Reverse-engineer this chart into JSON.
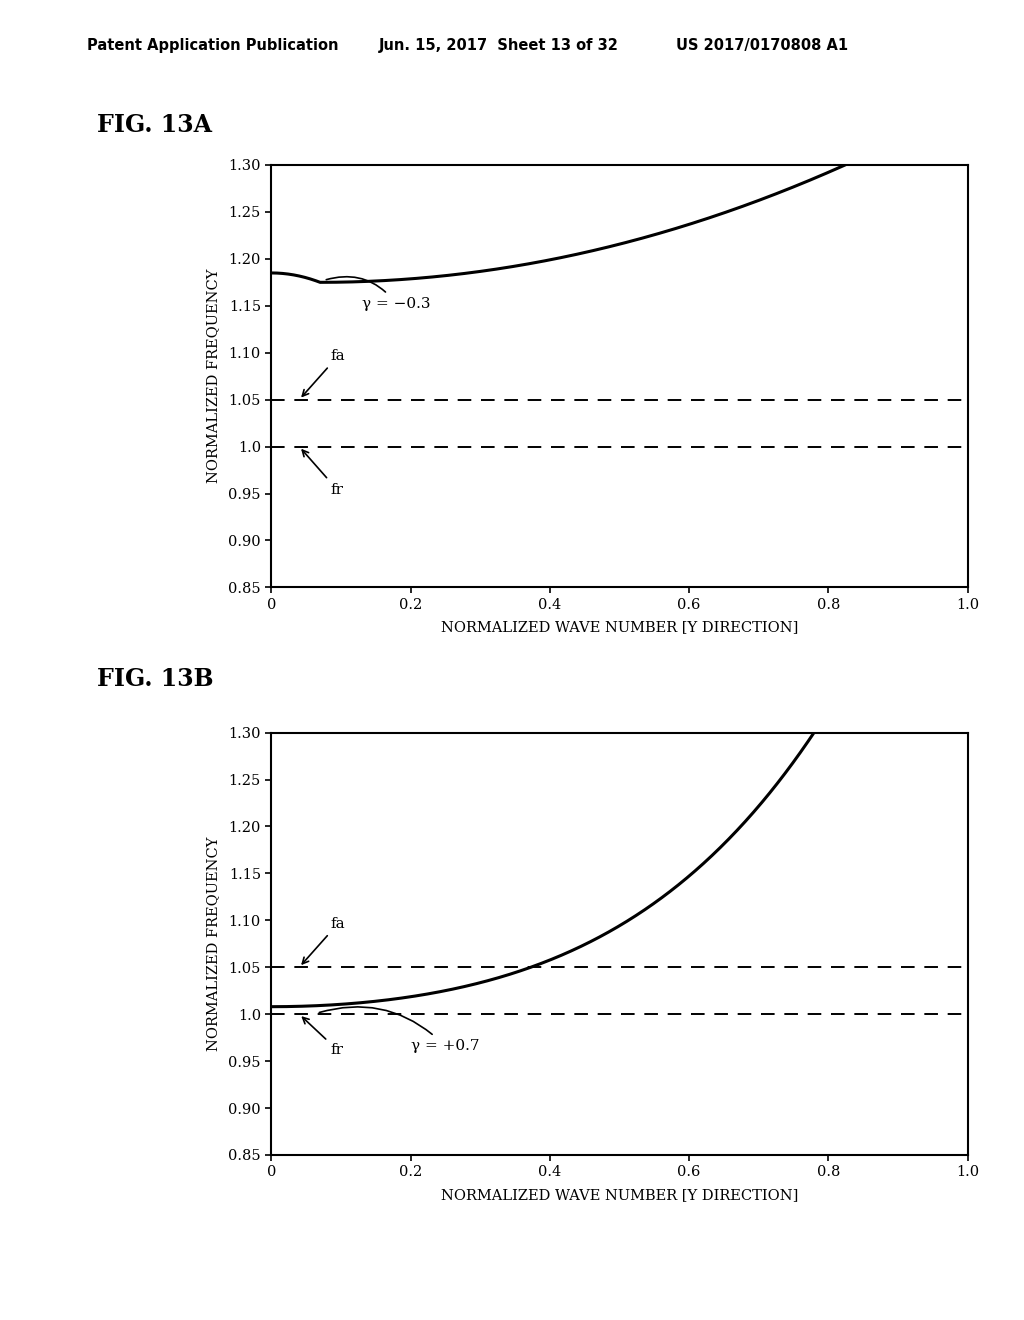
{
  "header_left": "Patent Application Publication",
  "header_mid": "Jun. 15, 2017  Sheet 13 of 32",
  "header_right": "US 2017/0170808 A1",
  "fig_label_A": "FIG. 13A",
  "fig_label_B": "FIG. 13B",
  "xlabel": "NORMALIZED WAVE NUMBER [Y DIRECTION]",
  "ylabel": "NORMALIZED FREQUENCY",
  "xlim": [
    0.0,
    1.0
  ],
  "ylim": [
    0.85,
    1.3
  ],
  "yticks": [
    0.85,
    0.9,
    0.95,
    1.0,
    1.05,
    1.1,
    1.15,
    1.2,
    1.25,
    1.3
  ],
  "xticks": [
    0.0,
    0.2,
    0.4,
    0.6,
    0.8,
    1.0
  ],
  "xtick_labels": [
    "0",
    "0.2",
    "0.4",
    "0.6",
    "0.8",
    "1.0"
  ],
  "ytick_labels": [
    "0.85",
    "0.90",
    "0.95",
    "1.0",
    "1.05",
    "1.10",
    "1.15",
    "1.20",
    "1.25",
    "1.30"
  ],
  "fa_line": 1.05,
  "fr_line": 1.0,
  "gamma_A": "γ = −0.3",
  "gamma_B": "γ = +0.7",
  "curve_color": "#000000",
  "dashed_color": "#000000",
  "background": "#ffffff",
  "line_width": 2.2,
  "dashed_lw": 1.4
}
